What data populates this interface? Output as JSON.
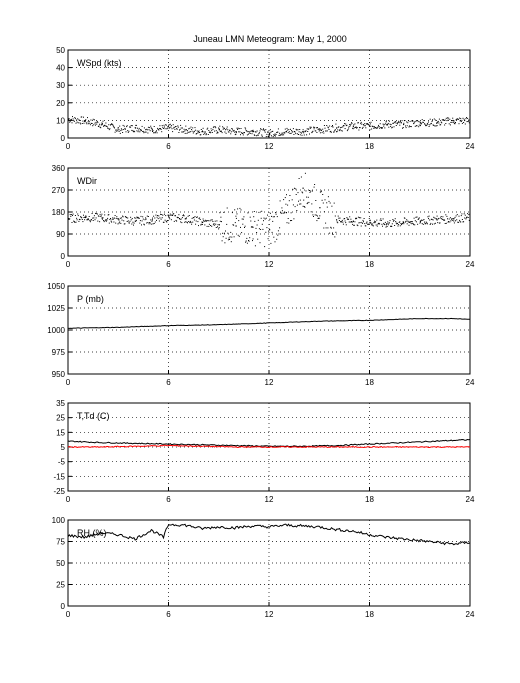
{
  "title": "Juneau LMN Meteogram:        May   1, 2000",
  "colors": {
    "primary": "#000000",
    "dewpoint": "#ff0000",
    "grid": "#000000"
  },
  "chart_data": [
    {
      "type": "scatter",
      "label": "WSpd (kts)",
      "x_ticks": [
        "0",
        "6",
        "12",
        "18",
        "24"
      ],
      "xlim": [
        0,
        24
      ],
      "ylim": [
        0,
        50
      ],
      "y_ticks": [
        "0",
        "10",
        "20",
        "30",
        "40",
        "50"
      ],
      "grid": true,
      "series": [
        {
          "values": [
            [
              0,
              11
            ],
            [
              1,
              10
            ],
            [
              2,
              8
            ],
            [
              3,
              5
            ],
            [
              4,
              6
            ],
            [
              5,
              5
            ],
            [
              6,
              6
            ],
            [
              7,
              5
            ],
            [
              8,
              4
            ],
            [
              9,
              5
            ],
            [
              10,
              4
            ],
            [
              11,
              4
            ],
            [
              12,
              3
            ],
            [
              13,
              4
            ],
            [
              14,
              4
            ],
            [
              15,
              5
            ],
            [
              16,
              6
            ],
            [
              17,
              7
            ],
            [
              18,
              7
            ],
            [
              19,
              8
            ],
            [
              20,
              8
            ],
            [
              21,
              9
            ],
            [
              22,
              9
            ],
            [
              23,
              10
            ],
            [
              24,
              10
            ]
          ]
        }
      ]
    },
    {
      "type": "scatter",
      "label": "WDir",
      "x_ticks": [
        "0",
        "6",
        "12",
        "18",
        "24"
      ],
      "xlim": [
        0,
        24
      ],
      "ylim": [
        0,
        360
      ],
      "y_ticks": [
        "0",
        "90",
        "180",
        "270",
        "360"
      ],
      "grid": true,
      "series": [
        {
          "values": [
            [
              0,
              155
            ],
            [
              1,
              160
            ],
            [
              2,
              158
            ],
            [
              3,
              150
            ],
            [
              4,
              145
            ],
            [
              5,
              150
            ],
            [
              6,
              160
            ],
            [
              7,
              155
            ],
            [
              8,
              140
            ],
            [
              9,
              130
            ],
            [
              10,
              125
            ],
            [
              11,
              120
            ],
            [
              12,
              110
            ],
            [
              13,
              180
            ],
            [
              14,
              280
            ],
            [
              15,
              200
            ],
            [
              16,
              150
            ],
            [
              17,
              145
            ],
            [
              18,
              140
            ],
            [
              19,
              135
            ],
            [
              20,
              140
            ],
            [
              21,
              145
            ],
            [
              22,
              150
            ],
            [
              23,
              155
            ],
            [
              24,
              160
            ]
          ]
        }
      ]
    },
    {
      "type": "line",
      "label": "P (mb)",
      "x_ticks": [
        "0",
        "6",
        "12",
        "18",
        "24"
      ],
      "xlim": [
        0,
        24
      ],
      "ylim": [
        950,
        1050
      ],
      "y_ticks": [
        "950",
        "975",
        "1000",
        "1025",
        "1050"
      ],
      "grid": true,
      "series": [
        {
          "values": [
            [
              0,
              1002
            ],
            [
              3,
              1003
            ],
            [
              6,
              1005
            ],
            [
              9,
              1006
            ],
            [
              12,
              1008
            ],
            [
              15,
              1010
            ],
            [
              18,
              1011
            ],
            [
              21,
              1013
            ],
            [
              23,
              1013
            ],
            [
              24,
              1012
            ]
          ]
        }
      ]
    },
    {
      "type": "line",
      "label": "T,Td (C)",
      "x_ticks": [
        "0",
        "6",
        "12",
        "18",
        "24"
      ],
      "xlim": [
        0,
        24
      ],
      "ylim": [
        -25,
        35
      ],
      "y_ticks": [
        "-25",
        "-15",
        "-5",
        "5",
        "15",
        "25",
        "35"
      ],
      "grid": true,
      "series": [
        {
          "values": [
            [
              0,
              9
            ],
            [
              2,
              8
            ],
            [
              4,
              7.5
            ],
            [
              6,
              7
            ],
            [
              8,
              6.5
            ],
            [
              10,
              6
            ],
            [
              12,
              5.5
            ],
            [
              14,
              5.5
            ],
            [
              16,
              6
            ],
            [
              18,
              7
            ],
            [
              20,
              8
            ],
            [
              22,
              9
            ],
            [
              24,
              10
            ]
          ]
        },
        {
          "values": [
            [
              0,
              5
            ],
            [
              2,
              5
            ],
            [
              4,
              5.5
            ],
            [
              6,
              6
            ],
            [
              8,
              5.5
            ],
            [
              10,
              5
            ],
            [
              12,
              5
            ],
            [
              14,
              5
            ],
            [
              16,
              5
            ],
            [
              18,
              5
            ],
            [
              20,
              5
            ],
            [
              22,
              5
            ],
            [
              24,
              5
            ]
          ]
        }
      ]
    },
    {
      "type": "line",
      "label": "RH (%)",
      "x_ticks": [
        "0",
        "6",
        "12",
        "18",
        "24"
      ],
      "xlim": [
        0,
        24
      ],
      "ylim": [
        0,
        100
      ],
      "y_ticks": [
        "0",
        "25",
        "50",
        "75",
        "100"
      ],
      "grid": true,
      "series": [
        {
          "values": [
            [
              0,
              82
            ],
            [
              1,
              80
            ],
            [
              2,
              85
            ],
            [
              3,
              83
            ],
            [
              4,
              78
            ],
            [
              5,
              88
            ],
            [
              5.7,
              80
            ],
            [
              6,
              95
            ],
            [
              7,
              94
            ],
            [
              8,
              90
            ],
            [
              9,
              92
            ],
            [
              10,
              91
            ],
            [
              11,
              93
            ],
            [
              12,
              92
            ],
            [
              13,
              94
            ],
            [
              14,
              93
            ],
            [
              15,
              92
            ],
            [
              16,
              89
            ],
            [
              17,
              87
            ],
            [
              18,
              83
            ],
            [
              19,
              80
            ],
            [
              20,
              78
            ],
            [
              21,
              76
            ],
            [
              22,
              74
            ],
            [
              23,
              72
            ],
            [
              24,
              74
            ]
          ]
        }
      ]
    }
  ]
}
